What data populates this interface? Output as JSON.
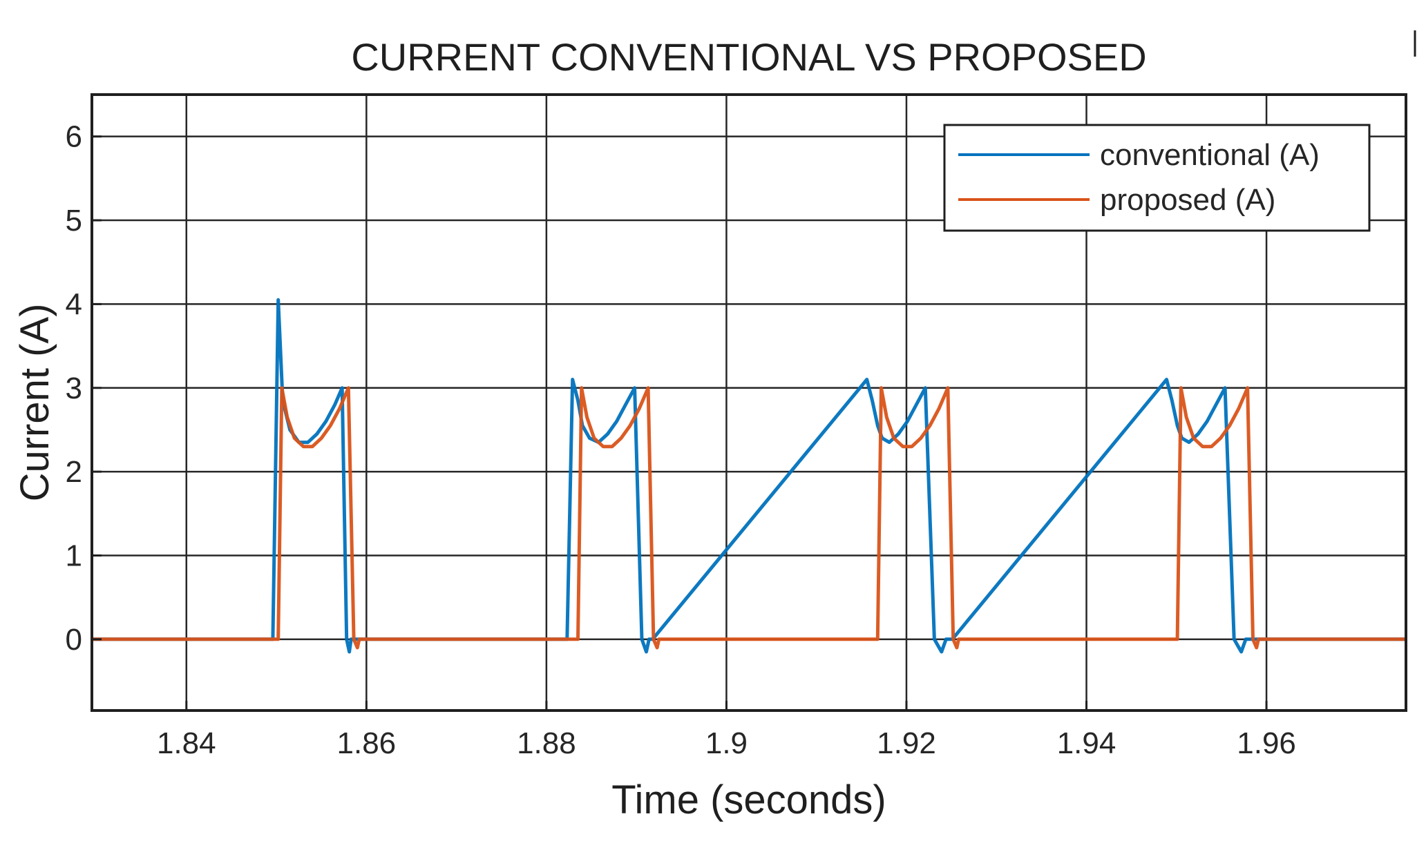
{
  "chart_data": {
    "type": "line",
    "title": "CURRENT CONVENTIONAL VS PROPOSED",
    "xlabel": "Time (seconds)",
    "ylabel": "Current (A)",
    "xlim": [
      1.8295,
      1.9755
    ],
    "ylim": [
      -0.85,
      6.5
    ],
    "xticks": [
      1.84,
      1.86,
      1.88,
      1.9,
      1.92,
      1.94,
      1.96
    ],
    "xtick_labels": [
      "1.84",
      "1.86",
      "1.88",
      "1.9",
      "1.92",
      "1.94",
      "1.96"
    ],
    "yticks": [
      0,
      1,
      2,
      3,
      4,
      5,
      6
    ],
    "ytick_labels": [
      "0",
      "1",
      "2",
      "3",
      "4",
      "5",
      "6"
    ],
    "grid": true,
    "legend_position": "top-right",
    "series": [
      {
        "name": "conventional (A)",
        "color": "#0072BD",
        "x": [
          1.8295,
          1.849,
          1.8496,
          1.8502,
          1.8507,
          1.8515,
          1.8525,
          1.8535,
          1.8545,
          1.8555,
          1.8565,
          1.8573,
          1.8578,
          1.8581,
          1.8583,
          1.8585,
          1.8823,
          1.8829,
          1.8835,
          1.884,
          1.8848,
          1.8858,
          1.8868,
          1.8878,
          1.8888,
          1.8898,
          1.8906,
          1.8911,
          1.8914,
          1.8916,
          1.8918,
          1.9156,
          1.9162,
          1.9168,
          1.9173,
          1.9181,
          1.9191,
          1.9201,
          1.9211,
          1.9221,
          1.9231,
          1.9239,
          1.9244,
          1.9247,
          1.9249,
          1.9251,
          1.9489,
          1.9495,
          1.9501,
          1.9506,
          1.9514,
          1.9524,
          1.9534,
          1.9544,
          1.9554,
          1.9564,
          1.9572,
          1.9577,
          1.958,
          1.9582,
          1.9584,
          1.9755
        ],
        "y": [
          0,
          0,
          0,
          4.05,
          2.85,
          2.5,
          2.35,
          2.35,
          2.45,
          2.6,
          2.8,
          3.0,
          0,
          -0.15,
          0,
          0,
          0,
          3.1,
          2.85,
          2.55,
          2.4,
          2.35,
          2.45,
          2.6,
          2.8,
          3.0,
          0,
          -0.15,
          0,
          0,
          0,
          3.1,
          2.85,
          2.55,
          2.4,
          2.35,
          2.45,
          2.6,
          2.8,
          3.0,
          0,
          -0.15,
          0,
          0,
          0,
          0,
          3.1,
          2.85,
          2.55,
          2.4,
          2.35,
          2.45,
          2.6,
          2.8,
          3.0,
          0,
          -0.15,
          0,
          0,
          0,
          0,
          0
        ]
      },
      {
        "name": "proposed (A)",
        "color": "#D95319",
        "x": [
          1.8295,
          1.8502,
          1.8506,
          1.8512,
          1.852,
          1.853,
          1.854,
          1.855,
          1.856,
          1.857,
          1.858,
          1.8586,
          1.859,
          1.8592,
          1.8594,
          1.8835,
          1.8839,
          1.8845,
          1.8853,
          1.8863,
          1.8873,
          1.8883,
          1.8893,
          1.8903,
          1.8913,
          1.8919,
          1.8923,
          1.8925,
          1.8927,
          1.9168,
          1.9172,
          1.9178,
          1.9186,
          1.9196,
          1.9206,
          1.9216,
          1.9226,
          1.9236,
          1.9246,
          1.9252,
          1.9256,
          1.9258,
          1.926,
          1.9501,
          1.9505,
          1.9511,
          1.9519,
          1.9529,
          1.9539,
          1.9549,
          1.9559,
          1.9569,
          1.9579,
          1.9585,
          1.9589,
          1.9591,
          1.9593,
          1.9755
        ],
        "y": [
          0,
          0,
          3.0,
          2.65,
          2.4,
          2.3,
          2.3,
          2.4,
          2.55,
          2.75,
          3.0,
          0,
          -0.1,
          0,
          0,
          0,
          3.0,
          2.65,
          2.4,
          2.3,
          2.3,
          2.4,
          2.55,
          2.75,
          3.0,
          0,
          -0.1,
          0,
          0,
          0,
          3.0,
          2.65,
          2.4,
          2.3,
          2.3,
          2.4,
          2.55,
          2.75,
          3.0,
          0,
          -0.1,
          0,
          0,
          0,
          3.0,
          2.65,
          2.4,
          2.3,
          2.3,
          2.4,
          2.55,
          2.75,
          3.0,
          0,
          -0.1,
          0,
          0,
          0
        ]
      }
    ]
  }
}
